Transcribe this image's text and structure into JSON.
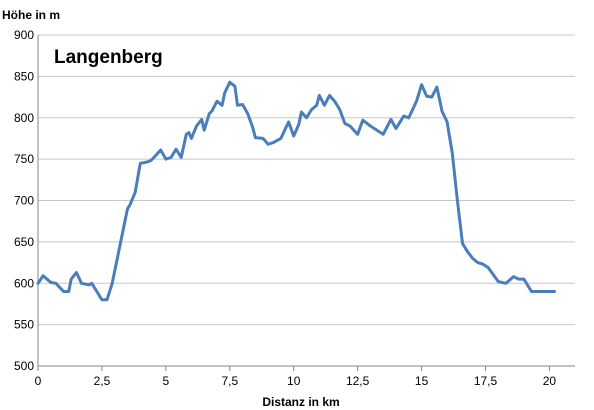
{
  "chart_data": {
    "type": "line",
    "title": "Langenberg",
    "xlabel": "Distanz in km",
    "ylabel": "Höhe in m",
    "xlim": [
      0,
      21
    ],
    "ylim": [
      500,
      900
    ],
    "x_ticks": [
      "0",
      "2,5",
      "5",
      "7,5",
      "10",
      "12,5",
      "15",
      "17,5",
      "20"
    ],
    "y_ticks": [
      "500",
      "550",
      "600",
      "650",
      "700",
      "750",
      "800",
      "850",
      "900"
    ],
    "grid": "horizontal",
    "line_color": "#4a7ebb",
    "series": [
      {
        "x": [
          0,
          0.2,
          0.5,
          0.7,
          1.0,
          1.2,
          1.3,
          1.5,
          1.7,
          2.0,
          2.1,
          2.3,
          2.5,
          2.7,
          2.9,
          3.1,
          3.3,
          3.5,
          3.6,
          3.8,
          4.0,
          4.2,
          4.4,
          4.5,
          4.8,
          5.0,
          5.2,
          5.4,
          5.6,
          5.8,
          5.9,
          6.0,
          6.2,
          6.4,
          6.5,
          6.7,
          6.8,
          7.0,
          7.2,
          7.3,
          7.5,
          7.7,
          7.8,
          8.0,
          8.2,
          8.4,
          8.5,
          8.8,
          9.0,
          9.2,
          9.5,
          9.8,
          10.0,
          10.2,
          10.3,
          10.5,
          10.7,
          10.9,
          11.0,
          11.2,
          11.4,
          11.6,
          11.8,
          12.0,
          12.2,
          12.5,
          12.7,
          13.0,
          13.3,
          13.5,
          13.8,
          14.0,
          14.3,
          14.5,
          14.8,
          15.0,
          15.2,
          15.4,
          15.6,
          15.8,
          16.0,
          16.2,
          16.4,
          16.6,
          16.8,
          17.0,
          17.2,
          17.4,
          17.6,
          18.0,
          18.3,
          18.6,
          18.8,
          19.0,
          19.3,
          19.6,
          19.9,
          20.0,
          20.2
        ],
        "y": [
          600,
          609,
          601,
          600,
          590,
          590,
          605,
          613,
          600,
          598,
          600,
          590,
          580,
          580,
          600,
          630,
          660,
          690,
          695,
          710,
          745,
          746,
          748,
          751,
          761,
          750,
          752,
          762,
          752,
          780,
          782,
          775,
          790,
          798,
          785,
          805,
          808,
          820,
          815,
          830,
          843,
          838,
          815,
          816,
          805,
          788,
          776,
          775,
          768,
          770,
          775,
          795,
          778,
          792,
          807,
          800,
          810,
          815,
          827,
          815,
          827,
          820,
          810,
          793,
          790,
          780,
          797,
          790,
          784,
          780,
          798,
          787,
          802,
          800,
          820,
          840,
          826,
          825,
          837,
          808,
          795,
          757,
          700,
          648,
          638,
          630,
          625,
          623,
          619,
          602,
          600,
          608,
          605,
          605,
          590,
          590,
          590,
          590,
          590
        ]
      }
    ]
  }
}
